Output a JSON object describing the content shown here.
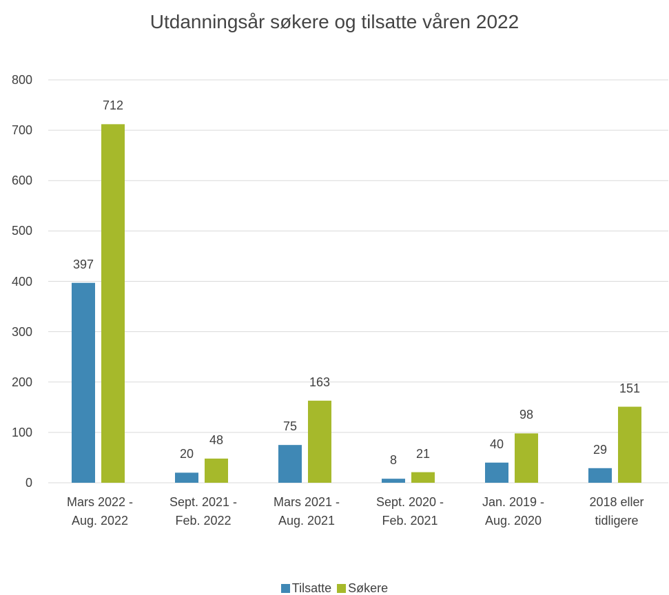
{
  "chart_data": {
    "type": "bar",
    "title": "Utdanningsår søkere og tilsatte våren 2022",
    "categories": [
      "Mars 2022 - Aug. 2022",
      "Sept. 2021 - Feb. 2022",
      "Mars 2021 - Aug. 2021",
      "Sept. 2020 - Feb. 2021",
      "Jan. 2019 - Aug. 2020",
      "2018 eller tidligere"
    ],
    "series": [
      {
        "name": "Tilsatte",
        "color": "#3f88b5",
        "values": [
          397,
          20,
          75,
          8,
          40,
          29
        ]
      },
      {
        "name": "Søkere",
        "color": "#a6b92b",
        "values": [
          712,
          48,
          163,
          21,
          98,
          151
        ]
      }
    ],
    "ylim": [
      0,
      800
    ],
    "yticks": [
      0,
      100,
      200,
      300,
      400,
      500,
      600,
      700,
      800
    ],
    "grid": true,
    "legend": "bottom"
  }
}
